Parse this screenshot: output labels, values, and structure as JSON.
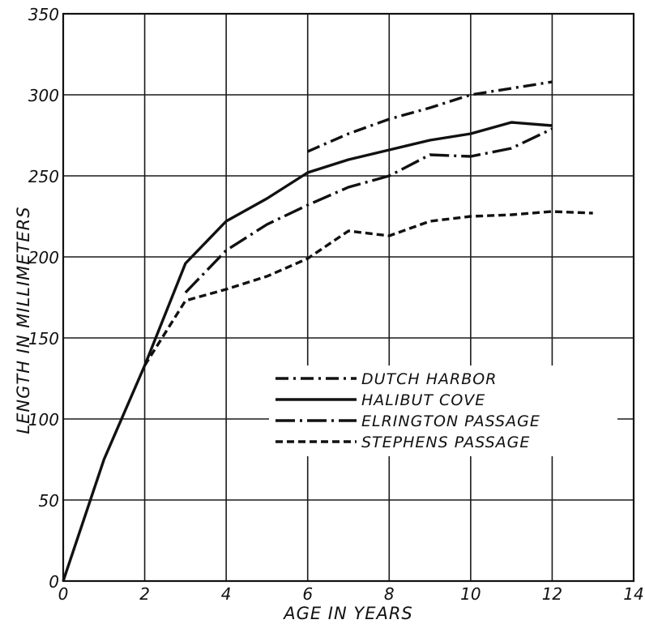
{
  "chart_data": {
    "type": "line",
    "title": "",
    "xlabel": "AGE IN YEARS",
    "ylabel": "LENGTH IN MILLIMETERS",
    "xlim": [
      0,
      14
    ],
    "ylim": [
      0,
      350
    ],
    "xticks": [
      0,
      2,
      4,
      6,
      8,
      10,
      12,
      14
    ],
    "yticks": [
      0,
      50,
      100,
      150,
      200,
      250,
      300,
      350
    ],
    "grid": true,
    "legend_position": "center-right",
    "series": [
      {
        "name": "DUTCH HARBOR",
        "style": "dash-dot",
        "points": [
          [
            6,
            265
          ],
          [
            7,
            276
          ],
          [
            8,
            285
          ],
          [
            9,
            292
          ],
          [
            10,
            300
          ],
          [
            11,
            304
          ],
          [
            12,
            308
          ]
        ]
      },
      {
        "name": "HALIBUT COVE",
        "style": "solid",
        "points": [
          [
            0,
            0
          ],
          [
            1,
            75
          ],
          [
            2,
            133
          ],
          [
            3,
            196
          ],
          [
            4,
            222
          ],
          [
            5,
            236
          ],
          [
            6,
            252
          ],
          [
            7,
            260
          ],
          [
            8,
            266
          ],
          [
            9,
            272
          ],
          [
            10,
            276
          ],
          [
            11,
            283
          ],
          [
            12,
            281
          ]
        ]
      },
      {
        "name": "ELRINGTON PASSAGE",
        "style": "long-dash-dot",
        "points": [
          [
            3,
            178
          ],
          [
            4,
            204
          ],
          [
            5,
            220
          ],
          [
            6,
            232
          ],
          [
            7,
            243
          ],
          [
            8,
            250
          ],
          [
            9,
            263
          ],
          [
            10,
            262
          ],
          [
            11,
            267
          ],
          [
            12,
            279
          ]
        ]
      },
      {
        "name": "STEPHENS PASSAGE",
        "style": "dashed",
        "points": [
          [
            2,
            133
          ],
          [
            3,
            173
          ],
          [
            4,
            180
          ],
          [
            5,
            188
          ],
          [
            6,
            199
          ],
          [
            7,
            216
          ],
          [
            8,
            213
          ],
          [
            9,
            222
          ],
          [
            10,
            225
          ],
          [
            11,
            226
          ],
          [
            12,
            228
          ],
          [
            13,
            227
          ]
        ]
      }
    ]
  }
}
